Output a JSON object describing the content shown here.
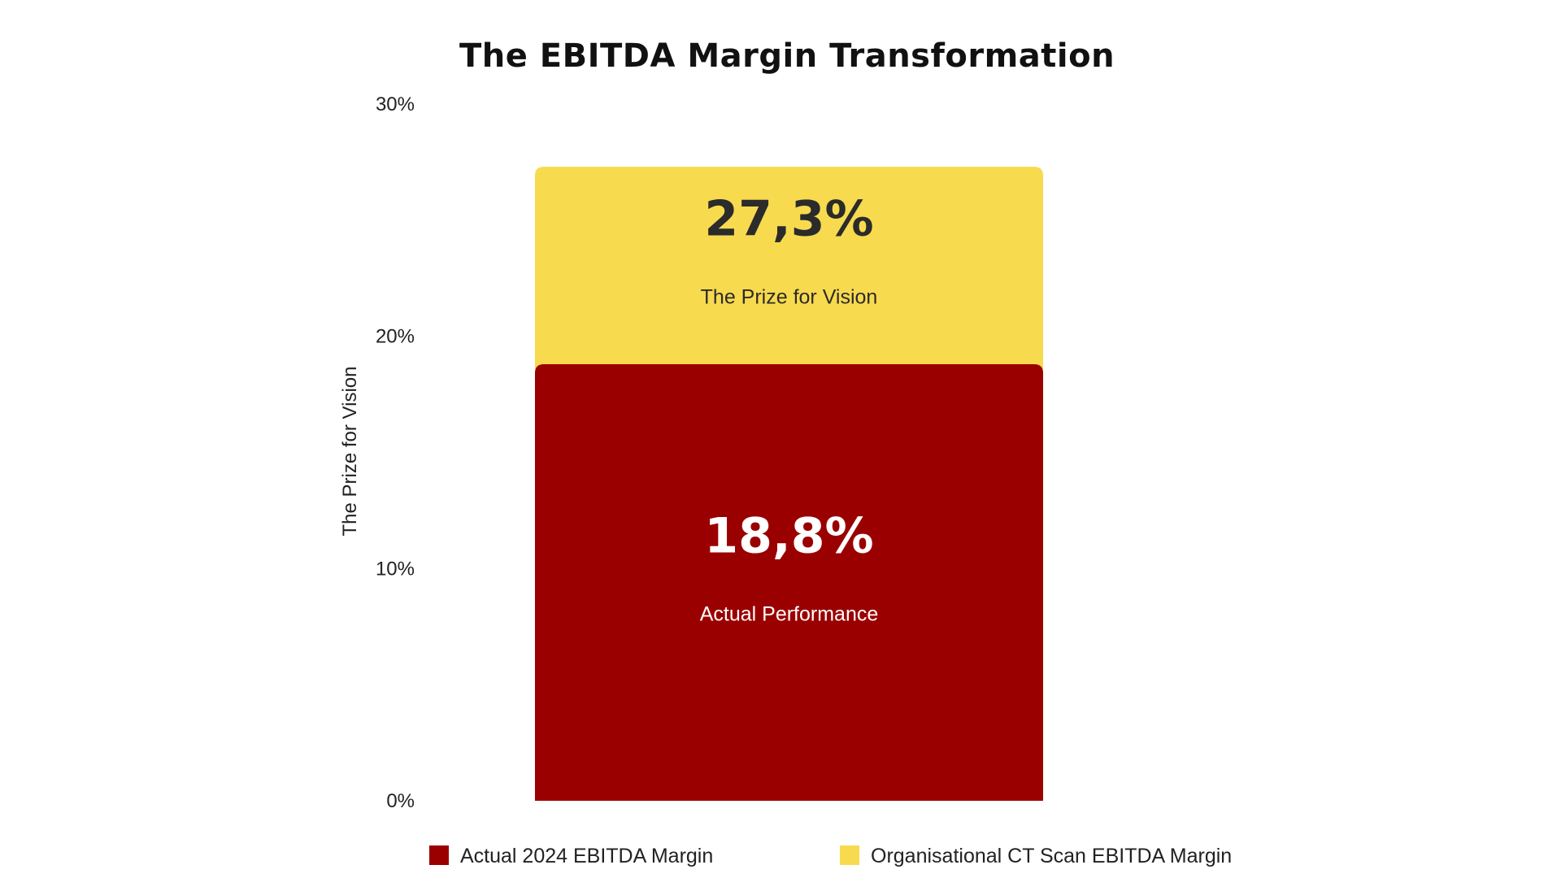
{
  "chart_data": {
    "type": "bar",
    "stacked": true,
    "title": "The EBITDA Margin Transformation",
    "xlabel": "",
    "ylabel": "The Prize for Vision",
    "ylim": [
      0,
      30
    ],
    "yticks": [
      {
        "value": 0,
        "label": "0%"
      },
      {
        "value": 10,
        "label": "10%"
      },
      {
        "value": 20,
        "label": "20%"
      },
      {
        "value": 30,
        "label": "30%"
      }
    ],
    "grid": false,
    "legend_position": "bottom",
    "series": [
      {
        "name": "Actual 2024 EBITDA Margin",
        "value": 18.8,
        "value_label": "18,8%",
        "label": "Actual Performance",
        "color": "#9b0000",
        "text_color": "#ffffff"
      },
      {
        "name": "Organisational CT Scan EBITDA Margin",
        "value": 27.3,
        "value_label": "27,3%",
        "label": "The Prize for Vision",
        "color": "#f8da4e",
        "text_color": "#2b2b2b"
      }
    ]
  }
}
